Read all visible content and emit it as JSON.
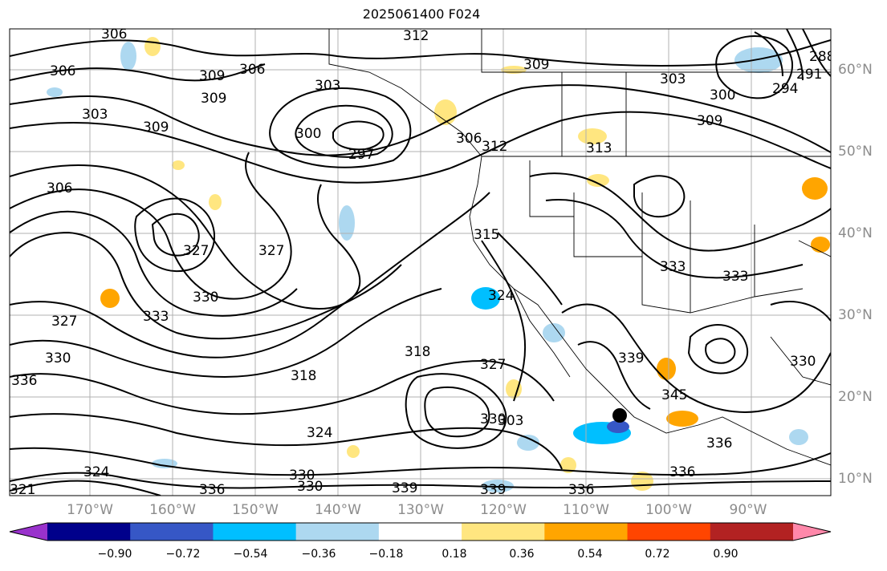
{
  "title": "2025061400 F024",
  "map": {
    "lon_labels": [
      "170°W",
      "160°W",
      "150°W",
      "140°W",
      "130°W",
      "120°W",
      "110°W",
      "100°W",
      "90°W"
    ],
    "lat_labels": [
      "60°N",
      "50°N",
      "40°N",
      "30°N",
      "20°N",
      "10°N"
    ],
    "contour_labels": [
      "312",
      "306",
      "306",
      "303",
      "303",
      "309",
      "309",
      "309",
      "306",
      "300",
      "297",
      "306",
      "312",
      "313",
      "303",
      "309",
      "300",
      "294",
      "291",
      "288",
      "306",
      "315",
      "327",
      "327",
      "327",
      "330",
      "333",
      "324",
      "330",
      "318",
      "318",
      "327",
      "333",
      "330",
      "324",
      "330",
      "330",
      "336",
      "339",
      "336",
      "336",
      "339",
      "339",
      "336",
      "345",
      "330",
      "333",
      "336",
      "321",
      "324",
      "303",
      "309"
    ],
    "marker": "black-dot"
  },
  "colorbar": {
    "ticks": [
      "−0.90",
      "−0.72",
      "−0.54",
      "−0.36",
      "−0.18",
      "0.18",
      "0.36",
      "0.54",
      "0.72",
      "0.90"
    ],
    "colors": [
      "#9932cc",
      "#00008b",
      "#3657c6",
      "#00bfff",
      "#add8f0",
      "#ffffff",
      "#ffe680",
      "#ffa500",
      "#ff4500",
      "#b22222",
      "#ff88aa"
    ]
  }
}
